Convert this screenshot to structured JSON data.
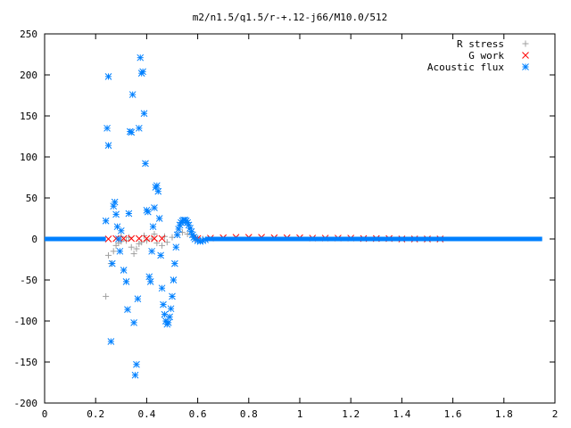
{
  "chart_data": {
    "type": "scatter",
    "title": "m2/n1.5/q1.5/r-+.12-j66/M10.0/512",
    "xlabel": "",
    "ylabel": "",
    "xlim": [
      0,
      2
    ],
    "ylim": [
      -200,
      250
    ],
    "x_ticks": [
      0,
      0.2,
      0.4,
      0.6,
      0.8,
      1,
      1.2,
      1.4,
      1.6,
      1.8,
      2
    ],
    "x_tick_labels": [
      "0",
      "0.2",
      "0.4",
      "0.6",
      "0.8",
      "1",
      "1.2",
      "1.4",
      "1.6",
      "1.8",
      "2"
    ],
    "y_ticks": [
      -200,
      -150,
      -100,
      -50,
      0,
      50,
      100,
      150,
      200,
      250
    ],
    "y_tick_labels": [
      "-200",
      "-150",
      "-100",
      "-50",
      "0",
      "50",
      "100",
      "150",
      "200",
      "250"
    ],
    "grid": false,
    "legend_position": "top-right",
    "series": [
      {
        "name": "R stress",
        "marker": "plus",
        "color": "#a0a0a0",
        "points": [
          [
            0.24,
            -70
          ],
          [
            0.25,
            -20
          ],
          [
            0.26,
            -30
          ],
          [
            0.27,
            -15
          ],
          [
            0.28,
            -8
          ],
          [
            0.29,
            -5
          ],
          [
            0.3,
            -3
          ],
          [
            0.32,
            -2
          ],
          [
            0.34,
            -10
          ],
          [
            0.35,
            -18
          ],
          [
            0.36,
            -12
          ],
          [
            0.37,
            -6
          ],
          [
            0.38,
            -4
          ],
          [
            0.4,
            -2
          ],
          [
            0.42,
            0
          ],
          [
            0.44,
            -5
          ],
          [
            0.46,
            -8
          ],
          [
            0.48,
            -4
          ],
          [
            0.5,
            2
          ],
          [
            0.52,
            5
          ],
          [
            0.54,
            8
          ],
          [
            0.56,
            6
          ],
          [
            0.58,
            3
          ],
          [
            0.6,
            1
          ],
          [
            0.62,
            0
          ],
          [
            0.3,
            3
          ],
          [
            0.33,
            2
          ],
          [
            0.39,
            4
          ],
          [
            0.43,
            6
          ],
          [
            0.47,
            3
          ]
        ]
      },
      {
        "name": "G work",
        "marker": "cross",
        "color": "#ff0000",
        "points": [
          [
            0.25,
            0
          ],
          [
            0.28,
            0.5
          ],
          [
            0.31,
            0.5
          ],
          [
            0.34,
            0.5
          ],
          [
            0.37,
            0.5
          ],
          [
            0.4,
            0.5
          ],
          [
            0.43,
            0.5
          ],
          [
            0.46,
            0.5
          ],
          [
            0.6,
            0.5
          ],
          [
            0.65,
            1
          ],
          [
            0.7,
            1.5
          ],
          [
            0.75,
            2
          ],
          [
            0.8,
            2
          ],
          [
            0.85,
            2
          ],
          [
            0.9,
            1.5
          ],
          [
            0.95,
            1.5
          ],
          [
            1.0,
            1.5
          ],
          [
            1.05,
            1
          ],
          [
            1.1,
            1
          ],
          [
            1.15,
            1
          ],
          [
            1.2,
            1
          ],
          [
            1.25,
            0.5
          ],
          [
            1.3,
            0.5
          ],
          [
            1.35,
            0.5
          ],
          [
            1.4,
            0
          ],
          [
            1.45,
            0
          ],
          [
            1.5,
            0
          ],
          [
            1.55,
            0
          ]
        ]
      },
      {
        "name": "Acoustic flux",
        "marker": "star",
        "color": "#0080ff",
        "points": [
          [
            0.24,
            22
          ],
          [
            0.245,
            135
          ],
          [
            0.25,
            114
          ],
          [
            0.25,
            198
          ],
          [
            0.26,
            -125
          ],
          [
            0.265,
            -30
          ],
          [
            0.27,
            40
          ],
          [
            0.275,
            45
          ],
          [
            0.28,
            30
          ],
          [
            0.285,
            15
          ],
          [
            0.29,
            0
          ],
          [
            0.295,
            -15
          ],
          [
            0.3,
            10
          ],
          [
            0.31,
            -38
          ],
          [
            0.32,
            -52
          ],
          [
            0.325,
            -86
          ],
          [
            0.33,
            31
          ],
          [
            0.335,
            131
          ],
          [
            0.34,
            130
          ],
          [
            0.345,
            176
          ],
          [
            0.35,
            -102
          ],
          [
            0.355,
            -166
          ],
          [
            0.36,
            -153
          ],
          [
            0.365,
            -73
          ],
          [
            0.37,
            135
          ],
          [
            0.375,
            221
          ],
          [
            0.38,
            202
          ],
          [
            0.385,
            204
          ],
          [
            0.39,
            153
          ],
          [
            0.395,
            92
          ],
          [
            0.4,
            35
          ],
          [
            0.405,
            33
          ],
          [
            0.41,
            -46
          ],
          [
            0.415,
            -52
          ],
          [
            0.42,
            -15
          ],
          [
            0.425,
            15
          ],
          [
            0.43,
            38
          ],
          [
            0.435,
            63
          ],
          [
            0.44,
            65
          ],
          [
            0.445,
            58
          ],
          [
            0.45,
            25
          ],
          [
            0.455,
            -20
          ],
          [
            0.46,
            -60
          ],
          [
            0.465,
            -80
          ],
          [
            0.47,
            -92
          ],
          [
            0.475,
            -100
          ],
          [
            0.48,
            -104
          ],
          [
            0.485,
            -102
          ],
          [
            0.49,
            -95
          ],
          [
            0.495,
            -85
          ],
          [
            0.5,
            -70
          ],
          [
            0.505,
            -50
          ],
          [
            0.51,
            -30
          ],
          [
            0.515,
            -10
          ],
          [
            0.52,
            5
          ],
          [
            0.525,
            12
          ],
          [
            0.53,
            17
          ],
          [
            0.535,
            20
          ],
          [
            0.54,
            22
          ],
          [
            0.545,
            23
          ],
          [
            0.55,
            23
          ],
          [
            0.555,
            22
          ],
          [
            0.56,
            20
          ],
          [
            0.565,
            17
          ],
          [
            0.57,
            13
          ],
          [
            0.575,
            9
          ],
          [
            0.58,
            5
          ],
          [
            0.585,
            2
          ],
          [
            0.59,
            0
          ],
          [
            0.6,
            -2
          ],
          [
            0.61,
            -3
          ],
          [
            0.62,
            -2
          ],
          [
            0.63,
            -1
          ]
        ]
      }
    ]
  }
}
